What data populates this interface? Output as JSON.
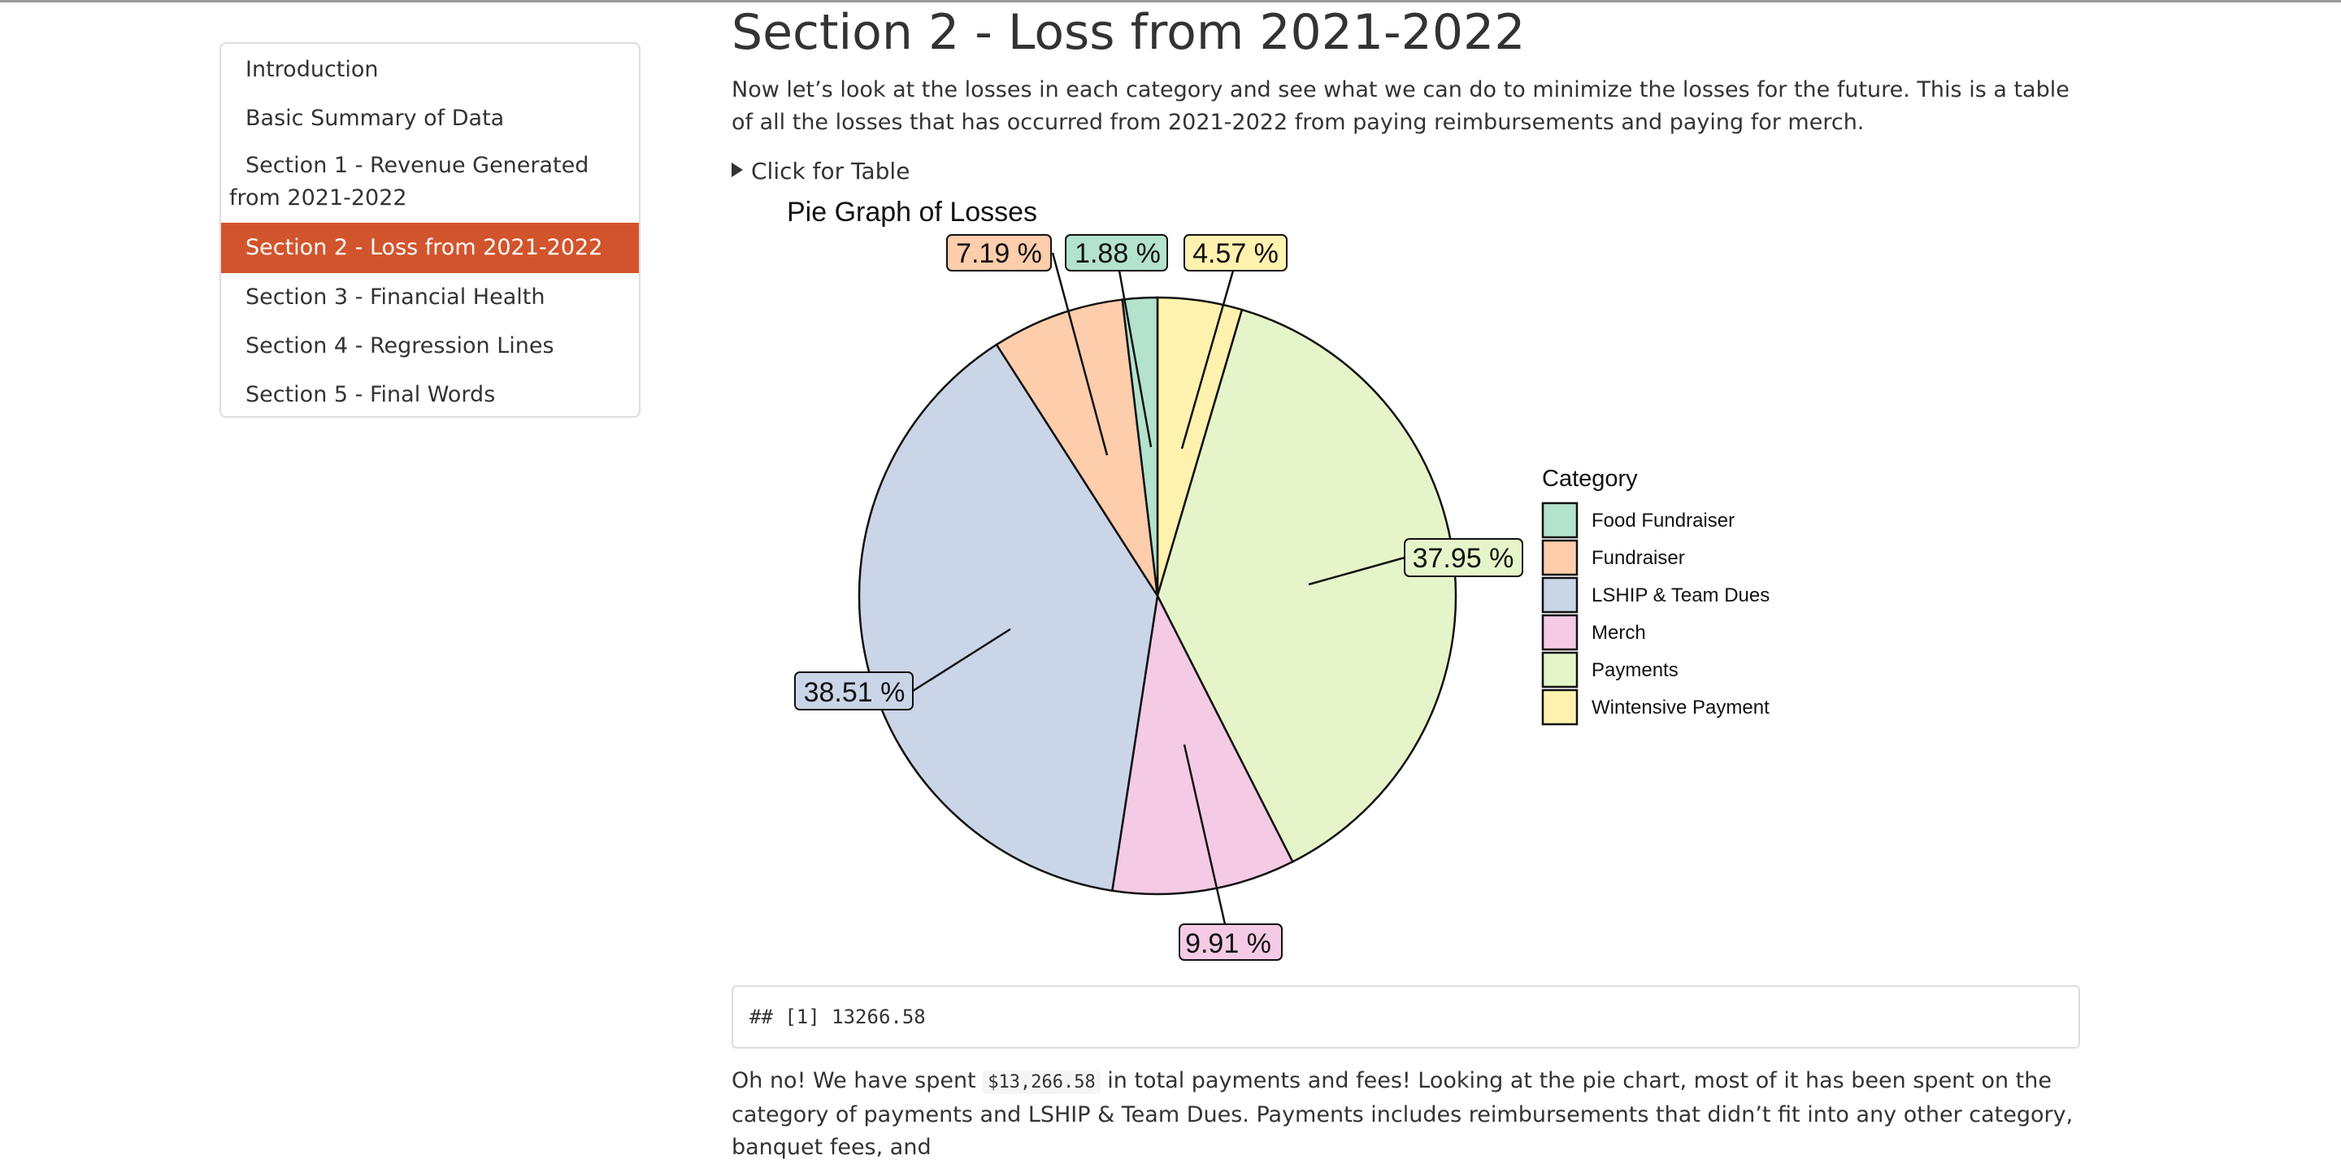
{
  "toc": {
    "items": [
      {
        "label": "Introduction",
        "active": false
      },
      {
        "label": "Basic Summary of Data",
        "active": false
      },
      {
        "label": "Section 1 - Revenue Generated from 2021-2022",
        "active": false
      },
      {
        "label": "Section 2 - Loss from 2021-2022",
        "active": true
      },
      {
        "label": "Section 3 - Financial Health",
        "active": false
      },
      {
        "label": "Section 4 - Regression Lines",
        "active": false
      },
      {
        "label": "Section 5 - Final Words",
        "active": false
      }
    ]
  },
  "section": {
    "title": "Section 2 - Loss from 2021-2022",
    "intro": "Now let’s look at the losses in each category and see what we can do to minimize the losses for the future. This is a table of all the losses that has occurred from 2021-2022 from paying reimbursements and paying for merch.",
    "details_label": "Click for Table"
  },
  "chart_data": {
    "type": "pie",
    "title": "Pie Graph of Losses",
    "legend_title": "Category",
    "legend_position": "right",
    "categories": [
      "Food Fundraiser",
      "Fundraiser",
      "LSHIP & Team Dues",
      "Merch",
      "Payments",
      "Wintensive Payment"
    ],
    "values": [
      1.88,
      7.19,
      38.51,
      9.91,
      37.95,
      4.57
    ],
    "labels": [
      "1.88 %",
      "7.19 %",
      "38.51 %",
      "9.91 %",
      "37.95 %",
      "4.57 %"
    ],
    "colors": [
      "#b3e2cd",
      "#fdcdac",
      "#cbd5e8",
      "#f4cae4",
      "#e6f5c9",
      "#fff2ae"
    ]
  },
  "output": {
    "text": "## [1] 13266.58"
  },
  "conclusion": {
    "before": "Oh no! We have spent ",
    "code": "$13,266.58",
    "after": " in total payments and fees! Looking at the pie chart, most of it has been spent on the category of payments and LSHIP & Team Dues. Payments includes reimbursements that didn’t fit into any other category, banquet fees, and"
  }
}
